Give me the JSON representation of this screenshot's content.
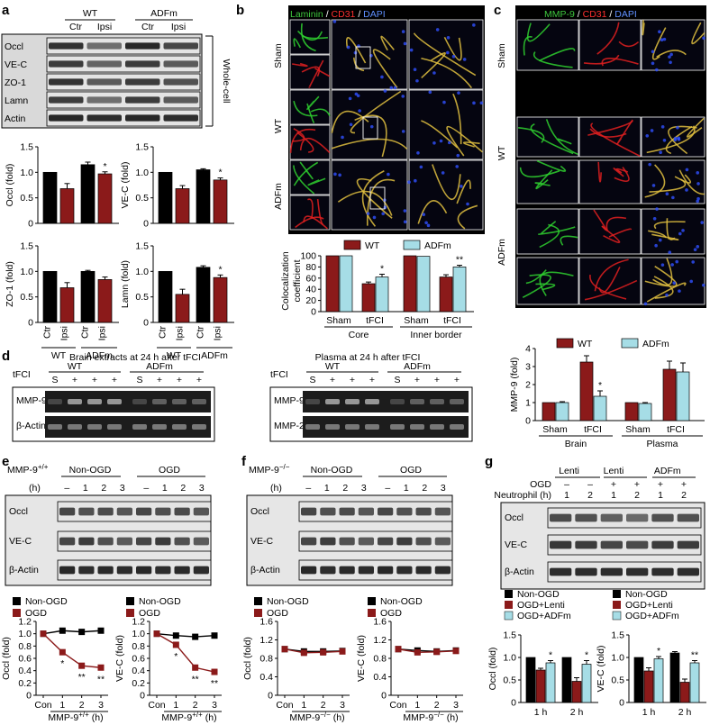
{
  "panel_labels": [
    "a",
    "b",
    "c",
    "d",
    "e",
    "f",
    "g"
  ],
  "a": {
    "header": {
      "wt": "WT",
      "adfm": "ADFm",
      "lanes": [
        "Ctr",
        "Ipsi",
        "Ctr",
        "Ipsi"
      ]
    },
    "bands": [
      "Occl",
      "VE-C",
      "ZO-1",
      "Lamn",
      "Actin"
    ],
    "bracket_label": "Whole-cell",
    "charts": [
      {
        "ylabel": "Occl (fold)",
        "values": [
          1.0,
          0.68,
          1.15,
          0.97
        ],
        "errors": [
          0,
          0.1,
          0.05,
          0.04
        ],
        "sig": [
          "",
          "",
          "",
          "*"
        ]
      },
      {
        "ylabel": "VE-C (fold)",
        "values": [
          1.0,
          0.68,
          1.05,
          0.85
        ],
        "errors": [
          0,
          0.06,
          0.02,
          0.04
        ],
        "sig": [
          "",
          "",
          "",
          "*"
        ]
      },
      {
        "ylabel": "ZO-1 (fold)",
        "values": [
          1.0,
          0.68,
          1.0,
          0.84
        ],
        "errors": [
          0,
          0.1,
          0.02,
          0.05
        ],
        "sig": [
          "",
          "",
          "",
          ""
        ]
      },
      {
        "ylabel": "Lamn (fold)",
        "values": [
          1.0,
          0.55,
          1.08,
          0.88
        ],
        "errors": [
          0,
          0.1,
          0.03,
          0.05
        ],
        "sig": [
          "",
          "",
          "",
          "*"
        ]
      }
    ],
    "yticks": [
      "0",
      "0.5",
      "1.0",
      "1.5"
    ],
    "xlabels": [
      "Ctr",
      "Ipsi",
      "Ctr",
      "Ipsi"
    ],
    "groups": [
      "WT",
      "ADFm"
    ]
  },
  "b": {
    "title": {
      "laminin": "Laminin",
      "slash1": " / ",
      "cd31": "CD31",
      "slash2": " / ",
      "dapi": "DAPI"
    },
    "rows": [
      "Sham",
      "WT",
      "ADFm"
    ],
    "chart": {
      "legend": [
        "WT",
        "ADFm"
      ],
      "ylabel1": "Colocalization",
      "ylabel2": "coefficient",
      "yticks": [
        "0",
        "20",
        "40",
        "60",
        "80",
        "100"
      ],
      "categories": [
        "Sham",
        "tFCI",
        "Sham",
        "tFCI"
      ],
      "groups": [
        "Core",
        "Inner border"
      ],
      "wt": [
        100,
        50,
        100,
        62
      ],
      "adfm": [
        100,
        62,
        99,
        80
      ],
      "err_wt": [
        0,
        3,
        0,
        4
      ],
      "err_adfm": [
        0,
        5,
        0,
        3
      ],
      "sig": [
        "",
        "*",
        "",
        "**"
      ]
    }
  },
  "c": {
    "title": {
      "mmp9": "MMP-9",
      "slash1": " / ",
      "cd31": "CD31",
      "slash2": " / ",
      "dapi": "DAPI"
    },
    "rows": [
      "Sham",
      "WT",
      "ADFm"
    ],
    "chart": {
      "legend": [
        "WT",
        "ADFm"
      ],
      "ylabel": "MMP-9 (fold)",
      "yticks": [
        "0",
        "1",
        "2",
        "3",
        "4"
      ],
      "categories": [
        "Sham",
        "tFCI",
        "Sham",
        "tFCI"
      ],
      "groups": [
        "Brain",
        "Plasma"
      ],
      "wt": [
        1.0,
        3.25,
        1.0,
        2.85
      ],
      "adfm": [
        1.0,
        1.35,
        0.95,
        2.7
      ],
      "err_wt": [
        0,
        0.35,
        0,
        0.45
      ],
      "err_adfm": [
        0.05,
        0.3,
        0.05,
        0.5
      ],
      "sig": [
        "",
        "*",
        "",
        ""
      ]
    }
  },
  "d": {
    "left_title": "Brain extracts at 24 h after tFCI",
    "right_title": "Plasma at 24 h after tFCI",
    "tfci": "tFCI",
    "wt": "WT",
    "adfm": "ADFm",
    "lanes": [
      "S",
      "+",
      "+",
      "+",
      "S",
      "+",
      "+",
      "+"
    ],
    "left_bands": [
      "MMP-9",
      "β-Actin"
    ],
    "right_bands": [
      "MMP-9",
      "MMP-2"
    ]
  },
  "e": {
    "genotype": "MMP-9",
    "sup": "+/+",
    "groups": [
      "Non-OGD",
      "OGD"
    ],
    "h": "(h)",
    "lanes": [
      "–",
      "1",
      "2",
      "3",
      "–",
      "1",
      "2",
      "3"
    ],
    "bands": [
      "Occl",
      "VE-C",
      "β-Actin"
    ],
    "legend": [
      "Non-OGD",
      "OGD"
    ],
    "charts": [
      {
        "ylabel": "Occl (fold)",
        "yticks": [
          "0",
          "0.2",
          "0.4",
          "0.6",
          "0.8",
          "1.0",
          "1.2"
        ],
        "non_ogd": [
          1.0,
          1.05,
          1.03,
          1.05
        ],
        "ogd": [
          1.0,
          0.7,
          0.48,
          0.45
        ],
        "sig": [
          "",
          "*",
          "**",
          "**"
        ]
      },
      {
        "ylabel": "VE-C (fold)",
        "yticks": [
          "0",
          "0.2",
          "0.4",
          "0.6",
          "0.8",
          "1.0",
          "1.2"
        ],
        "non_ogd": [
          1.0,
          0.97,
          0.95,
          0.97
        ],
        "ogd": [
          1.0,
          0.82,
          0.45,
          0.38
        ],
        "sig": [
          "",
          "*",
          "**",
          "**"
        ]
      }
    ],
    "xticks": [
      "Con",
      "1",
      "2",
      "3"
    ],
    "xlabel": "MMP-9",
    "xlabel_sup": "+/+",
    "xlabel_unit": " (h)"
  },
  "f": {
    "genotype": "MMP-9",
    "sup": "−/−",
    "groups": [
      "Non-OGD",
      "OGD"
    ],
    "h": "(h)",
    "lanes": [
      "–",
      "1",
      "2",
      "3",
      "–",
      "1",
      "2",
      "3"
    ],
    "bands": [
      "Occl",
      "VE-C",
      "β-Actin"
    ],
    "legend": [
      "Non-OGD",
      "OGD"
    ],
    "charts": [
      {
        "ylabel": "Occl (fold)",
        "yticks": [
          "0",
          "0.4",
          "0.8",
          "1.2",
          "1.6"
        ],
        "non_ogd": [
          1.0,
          0.95,
          0.95,
          0.96
        ],
        "ogd": [
          1.0,
          0.92,
          0.93,
          0.95
        ]
      },
      {
        "ylabel": "VE-C (fold)",
        "yticks": [
          "0",
          "0.4",
          "0.8",
          "1.2",
          "1.6"
        ],
        "non_ogd": [
          1.0,
          0.97,
          0.95,
          0.97
        ],
        "ogd": [
          1.0,
          0.93,
          0.94,
          0.96
        ]
      }
    ],
    "xticks": [
      "Con",
      "1",
      "2",
      "3"
    ],
    "xlabel": "MMP-9",
    "xlabel_sup": "−/−",
    "xlabel_unit": " (h)"
  },
  "g": {
    "col_groups": [
      "Lenti",
      "Lenti",
      "ADFm"
    ],
    "ogd_label": "OGD",
    "neutrophil_label": "Neutrophil (h)",
    "ogd_lanes": [
      "–",
      "–",
      "+",
      "+",
      "+",
      "+"
    ],
    "neut_lanes": [
      "1",
      "2",
      "1",
      "2",
      "1",
      "2"
    ],
    "bands": [
      "Occl",
      "VE-C",
      "β-Actin"
    ],
    "legend": [
      "Non-OGD",
      "OGD+Lenti",
      "OGD+ADFm"
    ],
    "charts": [
      {
        "ylabel": "Occl (fold)",
        "yticks": [
          "0",
          "0.5",
          "1.0",
          "1.5"
        ],
        "non": [
          1.0,
          1.0
        ],
        "lenti": [
          0.72,
          0.47
        ],
        "adfm": [
          0.88,
          0.85
        ],
        "err": [
          [
            0,
            0.04,
            0.05
          ],
          [
            0,
            0.08,
            0.08
          ]
        ],
        "sig": [
          "*",
          "*"
        ]
      },
      {
        "ylabel": "VE-C (fold)",
        "yticks": [
          "0",
          "0.5",
          "1.0",
          "1.5"
        ],
        "non": [
          1.0,
          1.1
        ],
        "lenti": [
          0.7,
          0.45
        ],
        "adfm": [
          0.97,
          0.88
        ],
        "err": [
          [
            0,
            0.07,
            0.05
          ],
          [
            0.03,
            0.07,
            0.05
          ]
        ],
        "sig": [
          "*",
          "**"
        ]
      }
    ],
    "xticks": [
      "1 h",
      "2 h"
    ]
  },
  "colors": {
    "black": "#000000",
    "red": "#8b1a1a",
    "cyan": "#a6dde6",
    "green": "#3ec83e"
  }
}
